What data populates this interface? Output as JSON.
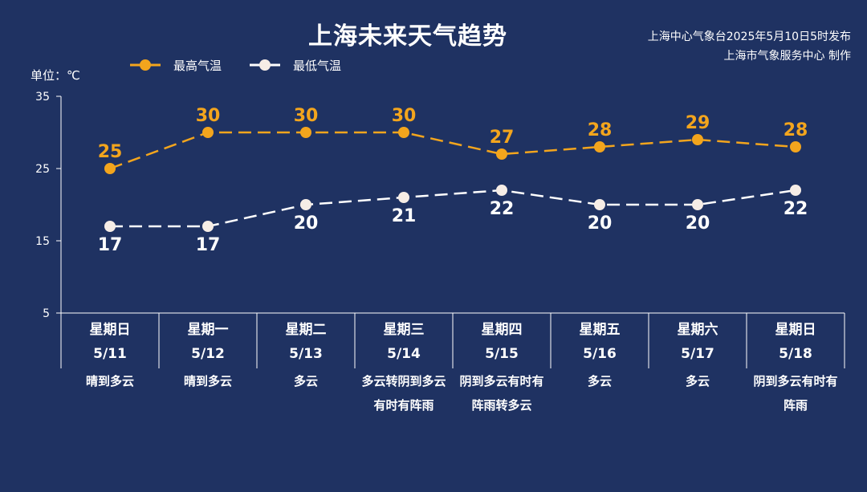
{
  "title": "上海未来天气趋势",
  "publisher": {
    "line1": "上海中心气象台2025年5月10日5时发布",
    "line2": "上海市气象服务中心 制作"
  },
  "unit_label": "单位：℃",
  "legend": {
    "high_label": "最高气温",
    "low_label": "最低气温"
  },
  "colors": {
    "background": "#1f3262",
    "high": "#f3a51d",
    "low": "#ffffff",
    "low_marker": "#f6ede6"
  },
  "days": [
    {
      "week": "星期日",
      "date": "5/11",
      "weather": "晴到多云"
    },
    {
      "week": "星期一",
      "date": "5/12",
      "weather": "晴到多云"
    },
    {
      "week": "星期二",
      "date": "5/13",
      "weather": "多云"
    },
    {
      "week": "星期三",
      "date": "5/14",
      "weather": "多云转阴到多云有时有阵雨"
    },
    {
      "week": "星期四",
      "date": "5/15",
      "weather": "阴到多云有时有阵雨转多云"
    },
    {
      "week": "星期五",
      "date": "5/16",
      "weather": "多云"
    },
    {
      "week": "星期六",
      "date": "5/17",
      "weather": "多云"
    },
    {
      "week": "星期日",
      "date": "5/18",
      "weather": "阴到多云有时有阵雨"
    }
  ],
  "chart_data": {
    "type": "line",
    "categories": [
      "5/11",
      "5/12",
      "5/13",
      "5/14",
      "5/15",
      "5/16",
      "5/17",
      "5/18"
    ],
    "series": [
      {
        "name": "最高气温",
        "values": [
          25,
          30,
          30,
          30,
          27,
          28,
          29,
          28
        ]
      },
      {
        "name": "最低气温",
        "values": [
          17,
          17,
          20,
          21,
          22,
          20,
          20,
          22
        ]
      }
    ],
    "ylim": [
      5,
      35
    ],
    "yticks": [
      5,
      15,
      25,
      35
    ],
    "grid": false,
    "line_style": "dashed",
    "legend_position": "top-left"
  }
}
